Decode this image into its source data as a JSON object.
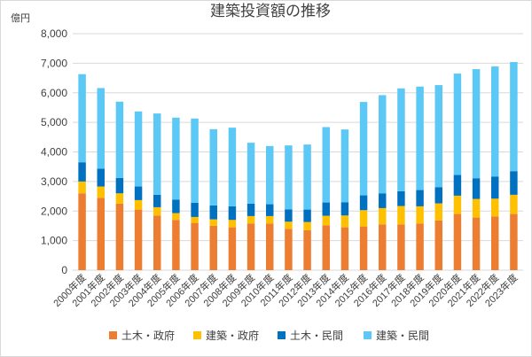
{
  "chart_data": {
    "type": "bar",
    "stacked": true,
    "title": "建築投資額の推移",
    "y_unit_label": "億円",
    "ylim": [
      0,
      8000
    ],
    "yticks": [
      "0",
      "1,000",
      "2,000",
      "3,000",
      "4,000",
      "5,000",
      "6,000",
      "7,000",
      "8,000"
    ],
    "grid": true,
    "legend_position": "bottom",
    "categories": [
      "2000年度",
      "2001年度",
      "2002年度",
      "2003年度",
      "2004年度",
      "2005年度",
      "2006年度",
      "2007年度",
      "2008年度",
      "2009年度",
      "2010年度",
      "2011年度",
      "2012年度",
      "2013年度",
      "2014年度",
      "2015年度",
      "2016年度",
      "2017年度",
      "2018年度",
      "2019年度",
      "2020年度",
      "2021年度",
      "2022年度",
      "2023年度"
    ],
    "series": [
      {
        "name": "土木・政府",
        "color": "#ED7D31",
        "values": [
          2600,
          2450,
          2250,
          2050,
          1850,
          1700,
          1600,
          1500,
          1450,
          1580,
          1580,
          1400,
          1350,
          1520,
          1450,
          1480,
          1550,
          1550,
          1580,
          1680,
          1900,
          1780,
          1820,
          1900
        ]
      },
      {
        "name": "建築・政府",
        "color": "#FFC000",
        "values": [
          400,
          380,
          350,
          320,
          280,
          230,
          200,
          220,
          250,
          250,
          250,
          240,
          280,
          320,
          400,
          550,
          550,
          620,
          580,
          580,
          620,
          630,
          600,
          650
        ]
      },
      {
        "name": "土木・民間",
        "color": "#0070C0",
        "values": [
          650,
          600,
          520,
          460,
          420,
          460,
          480,
          470,
          460,
          420,
          400,
          420,
          420,
          450,
          450,
          500,
          500,
          500,
          550,
          550,
          700,
          700,
          750,
          800
        ]
      },
      {
        "name": "建築・民間",
        "color": "#5BC8F5",
        "values": [
          2980,
          2730,
          2580,
          2540,
          2750,
          2770,
          2850,
          2580,
          2660,
          2060,
          1970,
          2160,
          2200,
          2550,
          2460,
          3160,
          3320,
          3480,
          3500,
          3450,
          3430,
          3690,
          3720,
          3690
        ]
      }
    ]
  }
}
